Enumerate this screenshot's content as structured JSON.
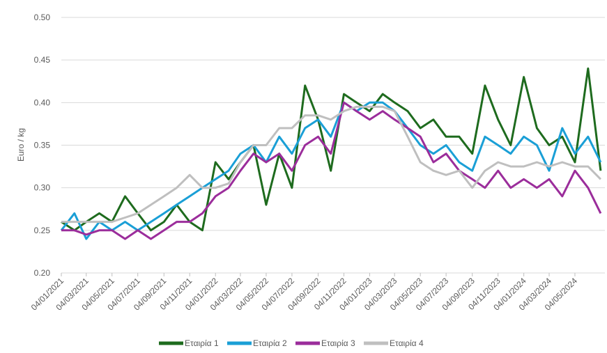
{
  "chart_data": {
    "type": "line",
    "y_label": "Euro / kg",
    "x": [
      "04/01/2021",
      "04/02/2021",
      "04/03/2021",
      "04/04/2021",
      "04/05/2021",
      "04/06/2021",
      "04/07/2021",
      "04/08/2021",
      "04/09/2021",
      "04/10/2021",
      "04/11/2021",
      "04/12/2021",
      "04/01/2022",
      "04/02/2022",
      "04/03/2022",
      "04/04/2022",
      "04/05/2022",
      "04/06/2022",
      "04/07/2022",
      "04/08/2022",
      "04/09/2022",
      "04/10/2022",
      "04/11/2022",
      "04/12/2022",
      "04/01/2023",
      "04/02/2023",
      "04/03/2023",
      "04/04/2023",
      "04/05/2023",
      "04/06/2023",
      "04/07/2023",
      "04/08/2023",
      "04/09/2023",
      "04/10/2023",
      "04/11/2023",
      "04/12/2023",
      "04/01/2024",
      "04/02/2024",
      "04/03/2024",
      "04/04/2024",
      "04/05/2024",
      "04/06/2024",
      "04/07/2024"
    ],
    "series": [
      {
        "name": "Εταιρία 1",
        "color": "#1e6b1e",
        "values": [
          0.26,
          0.25,
          0.26,
          0.27,
          0.26,
          0.29,
          0.27,
          0.25,
          0.26,
          0.28,
          0.26,
          0.25,
          0.33,
          0.31,
          0.33,
          0.35,
          0.28,
          0.34,
          0.3,
          0.42,
          0.38,
          0.32,
          0.41,
          0.4,
          0.39,
          0.41,
          0.4,
          0.39,
          0.37,
          0.38,
          0.36,
          0.36,
          0.34,
          0.42,
          0.38,
          0.35,
          0.43,
          0.37,
          0.35,
          0.36,
          0.33,
          0.44,
          0.32
        ]
      },
      {
        "name": "Εταιρία 2",
        "color": "#1a9fd6",
        "values": [
          0.25,
          0.27,
          0.24,
          0.26,
          0.25,
          0.26,
          0.25,
          0.26,
          0.27,
          0.28,
          0.29,
          0.3,
          0.31,
          0.32,
          0.34,
          0.35,
          0.33,
          0.36,
          0.34,
          0.37,
          0.38,
          0.36,
          0.4,
          0.39,
          0.4,
          0.4,
          0.39,
          0.37,
          0.35,
          0.34,
          0.35,
          0.33,
          0.32,
          0.36,
          0.35,
          0.34,
          0.36,
          0.35,
          0.32,
          0.37,
          0.34,
          0.36,
          0.33
        ]
      },
      {
        "name": "Εταιρία 3",
        "color": "#9b2d9b",
        "values": [
          0.25,
          0.25,
          0.245,
          0.25,
          0.25,
          0.24,
          0.25,
          0.24,
          0.25,
          0.26,
          0.26,
          0.27,
          0.29,
          0.3,
          0.32,
          0.34,
          0.33,
          0.34,
          0.32,
          0.35,
          0.36,
          0.34,
          0.4,
          0.39,
          0.38,
          0.39,
          0.38,
          0.37,
          0.36,
          0.33,
          0.34,
          0.32,
          0.31,
          0.3,
          0.32,
          0.3,
          0.31,
          0.3,
          0.31,
          0.29,
          0.32,
          0.3,
          0.27
        ]
      },
      {
        "name": "Εταιρία 4",
        "color": "#bfbfbf",
        "values": [
          0.26,
          0.26,
          0.26,
          0.26,
          0.26,
          0.265,
          0.27,
          0.28,
          0.29,
          0.3,
          0.315,
          0.3,
          0.3,
          0.305,
          0.33,
          0.35,
          0.35,
          0.37,
          0.37,
          0.385,
          0.385,
          0.38,
          0.39,
          0.395,
          0.395,
          0.395,
          0.39,
          0.36,
          0.33,
          0.32,
          0.315,
          0.32,
          0.3,
          0.32,
          0.33,
          0.325,
          0.325,
          0.33,
          0.325,
          0.33,
          0.325,
          0.325,
          0.31
        ]
      }
    ],
    "xlim": [
      "04/01/2021",
      "14/07/2024"
    ],
    "xticks": [
      "04/01/2021",
      "04/03/2021",
      "04/05/2021",
      "04/07/2021",
      "04/09/2021",
      "04/11/2021",
      "04/01/2022",
      "04/03/2022",
      "04/05/2022",
      "04/07/2022",
      "04/09/2022",
      "04/11/2022",
      "04/01/2023",
      "04/03/2023",
      "04/05/2023",
      "04/07/2023",
      "04/09/2023",
      "04/11/2023",
      "04/01/2024",
      "04/03/2024",
      "04/05/2024"
    ],
    "ylim": [
      0.2,
      0.5
    ],
    "yticks": [
      {
        "value": 0.2,
        "label": "0.20"
      },
      {
        "value": 0.25,
        "label": "0.25"
      },
      {
        "value": 0.3,
        "label": "0.30"
      },
      {
        "value": 0.35,
        "label": "0.35"
      },
      {
        "value": 0.4,
        "label": "0.40"
      },
      {
        "value": 0.45,
        "label": "0.45"
      },
      {
        "value": 0.5,
        "label": "0.50"
      }
    ],
    "grid": true
  }
}
